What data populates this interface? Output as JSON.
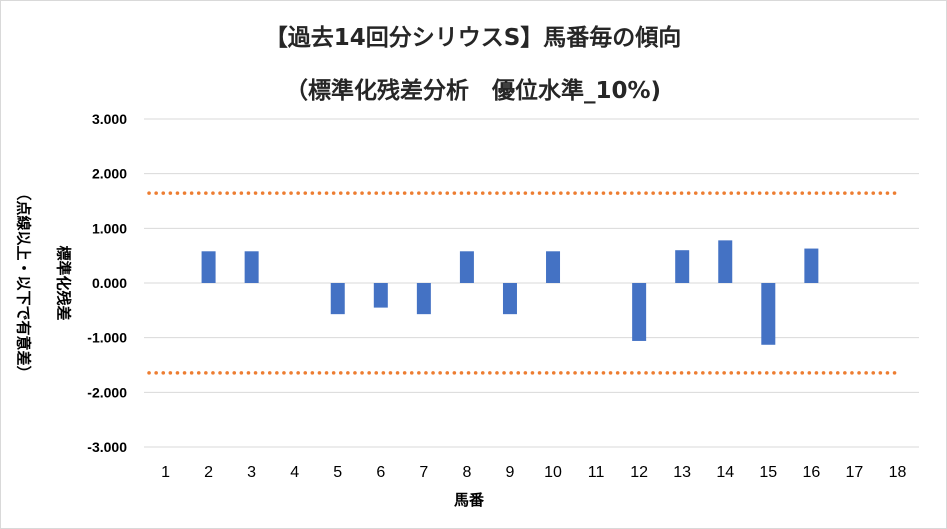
{
  "chart_data": {
    "type": "bar",
    "title_line1": "【過去14回分シリウスS】馬番毎の傾向",
    "title_line2": "（標準化残差分析　優位水準_10%)",
    "xlabel": "馬番",
    "ylabel_line1": "標準化残差",
    "ylabel_line2": "（点線以上・以下で有意差）",
    "categories": [
      "1",
      "2",
      "3",
      "4",
      "5",
      "6",
      "7",
      "8",
      "9",
      "10",
      "11",
      "12",
      "13",
      "14",
      "15",
      "16",
      "17",
      "18"
    ],
    "values": [
      0,
      0.58,
      0.58,
      0,
      -0.57,
      -0.45,
      -0.57,
      0.58,
      -0.57,
      0.58,
      0,
      -1.06,
      0.6,
      0.78,
      -1.13,
      0.63,
      0,
      0
    ],
    "ylim": [
      -3,
      3
    ],
    "yticks": [
      3,
      2,
      1,
      0,
      -1,
      -2,
      -3
    ],
    "ytick_labels": [
      "3.000",
      "2.000",
      "1.000",
      "0.000",
      "-1.000",
      "-2.000",
      "-3.000"
    ],
    "thresholds": [
      1.645,
      -1.645
    ],
    "bar_color": "#4472c4",
    "threshold_color": "#ed7d31",
    "grid": true,
    "legend": "none"
  }
}
